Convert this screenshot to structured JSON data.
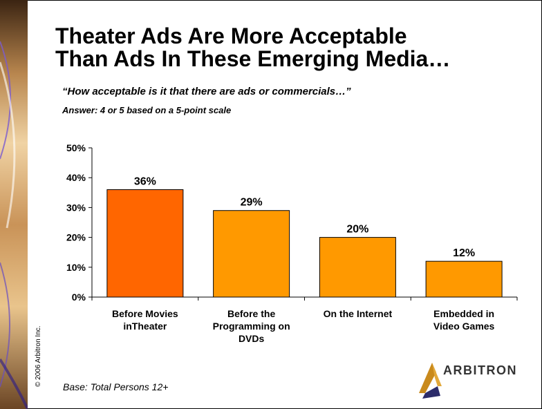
{
  "slide": {
    "title_line1": "Theater Ads Are More Acceptable",
    "title_line2": "Than Ads In These Emerging Media…",
    "question": "“How acceptable is it that there are ads or commercials…”",
    "answer_note": "Answer: 4 or 5 based on a 5-point scale",
    "base": "Base:  Total Persons 12+",
    "copyright": "© 2006 Arbitron Inc.",
    "logo_text": "ARBITRON",
    "logo_icon": "arbitron-triangle-logo"
  },
  "colors": {
    "highlight_bar": "#FF6600",
    "bar": "#FF9900",
    "bar_border": "#000000",
    "strip_dark": "#5a3a1e",
    "strip_light": "#e8c79a"
  },
  "chart_data": {
    "type": "bar",
    "categories": [
      [
        "Before Movies",
        "inTheater"
      ],
      [
        "Before the",
        "Programming on",
        "DVDs"
      ],
      [
        "On the Internet"
      ],
      [
        "Embedded in",
        "Video Games"
      ]
    ],
    "values": [
      36,
      29,
      20,
      12
    ],
    "data_labels": [
      "36%",
      "29%",
      "20%",
      "12%"
    ],
    "highlight_index": 0,
    "y_ticks": [
      "0%",
      "10%",
      "20%",
      "30%",
      "40%",
      "50%"
    ],
    "ylim": [
      0,
      50
    ],
    "grid": false,
    "legend": "none"
  }
}
